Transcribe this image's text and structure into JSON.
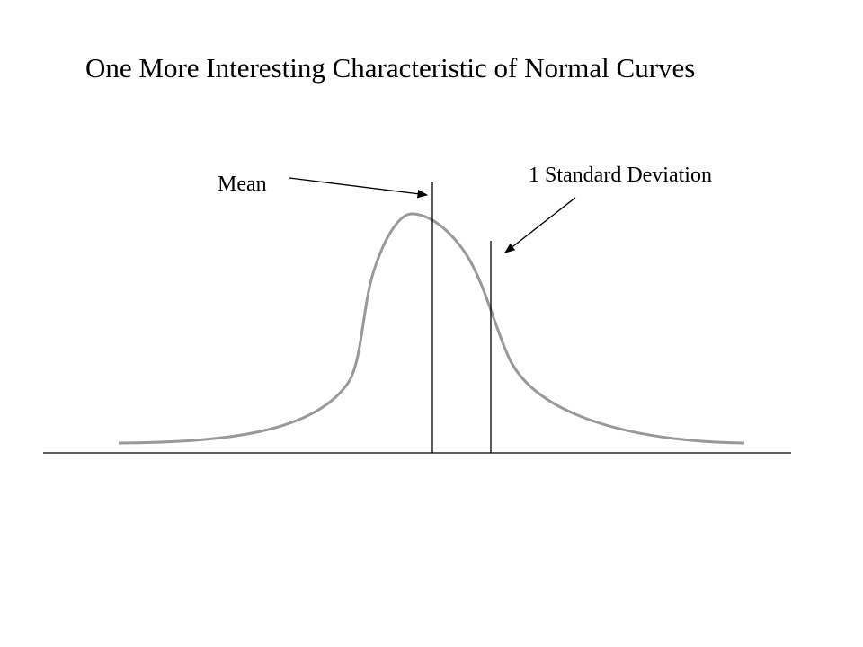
{
  "title": "One More Interesting Characteristic of Normal Curves",
  "labels": {
    "mean": "Mean",
    "sd": "1 Standard Deviation"
  }
}
